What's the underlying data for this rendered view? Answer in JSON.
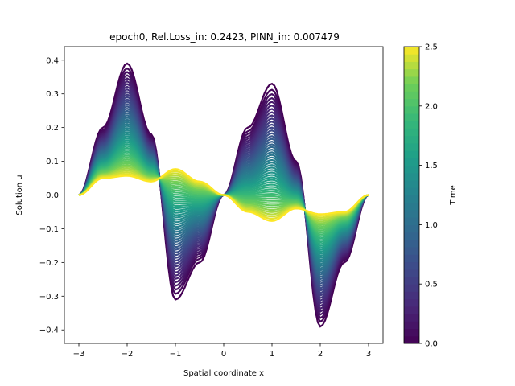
{
  "chart_data": {
    "type": "line",
    "title": "epoch0, Rel.Loss_in: 0.2423, PINN_in: 0.007479",
    "xlabel": "Spatial coordinate x",
    "ylabel": "Solution u",
    "xlim": [
      -3.3,
      3.3
    ],
    "ylim": [
      -0.44,
      0.44
    ],
    "xticks": [
      -3,
      -2,
      -1,
      0,
      1,
      2,
      3
    ],
    "xtick_labels": [
      "−3",
      "−2",
      "−1",
      "0",
      "1",
      "2",
      "3"
    ],
    "yticks": [
      -0.4,
      -0.3,
      -0.2,
      -0.1,
      0.0,
      0.1,
      0.2,
      0.3,
      0.4
    ],
    "ytick_labels": [
      "−0.4",
      "−0.3",
      "−0.2",
      "−0.1",
      "0.0",
      "0.1",
      "0.2",
      "0.3",
      "0.4"
    ],
    "grid": false,
    "colormap": "viridis",
    "series": {
      "count": 51,
      "t_start": 0.0,
      "t_end": 2.5,
      "x": [
        -3.0,
        -2.5,
        -2.0,
        -1.5,
        -1.0,
        -0.5,
        0.0,
        0.5,
        1.0,
        1.5,
        2.0,
        2.5,
        3.0
      ],
      "u_at_t_start": [
        0.0,
        0.2,
        0.39,
        0.18,
        -0.31,
        -0.2,
        0.0,
        0.2,
        0.33,
        0.1,
        -0.39,
        -0.2,
        0.0
      ],
      "u_at_t_end": [
        0.0,
        0.05,
        0.057,
        0.04,
        0.077,
        0.04,
        0.0,
        -0.05,
        -0.077,
        -0.04,
        -0.057,
        -0.05,
        0.0
      ]
    },
    "colorbar": {
      "label": "Time",
      "range": [
        0.0,
        2.5
      ],
      "ticks": [
        0.0,
        0.5,
        1.0,
        1.5,
        2.0,
        2.5
      ],
      "tick_labels": [
        "0.0",
        "0.5",
        "1.0",
        "1.5",
        "2.0",
        "2.5"
      ]
    }
  }
}
